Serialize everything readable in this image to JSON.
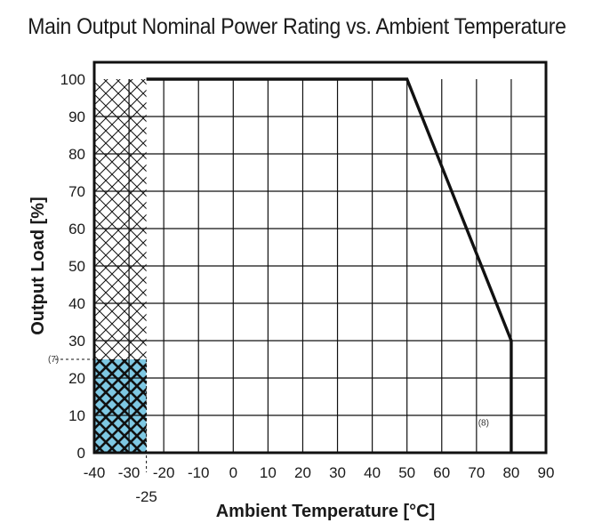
{
  "chart_data": {
    "type": "line",
    "title": "Main Output Nominal Power Rating vs. Ambient Temperature",
    "xlabel": "Ambient Temperature [°C]",
    "ylabel": "Output Load [%]",
    "xlim": [
      -40,
      90
    ],
    "ylim": [
      0,
      100
    ],
    "x_ticks": [
      -40,
      -30,
      -20,
      -10,
      0,
      10,
      20,
      30,
      40,
      50,
      60,
      70,
      80,
      90
    ],
    "x_tick_labels": [
      "-40",
      "-30",
      "-20",
      "-10",
      "0",
      "10",
      "20",
      "30",
      "40",
      "50",
      "60",
      "70",
      "80",
      "90"
    ],
    "y_ticks": [
      0,
      10,
      20,
      30,
      40,
      50,
      60,
      70,
      80,
      90,
      100
    ],
    "y_tick_labels": [
      "0",
      "10",
      "20",
      "30",
      "40",
      "50",
      "60",
      "70",
      "80",
      "90",
      "100"
    ],
    "grid": true,
    "extra_x_tick": {
      "value": -25,
      "label": "-25"
    },
    "series": [
      {
        "name": "Nominal power rating",
        "x": [
          -25,
          50,
          80,
          80
        ],
        "y": [
          100,
          100,
          30,
          0
        ]
      }
    ],
    "regions": [
      {
        "name": "hatched-low-temp-zone",
        "x_range": [
          -40,
          -25
        ],
        "y_range": [
          0,
          100
        ]
      },
      {
        "name": "blue-startup-zone",
        "x_range": [
          -40,
          -25
        ],
        "y_range": [
          0,
          25
        ],
        "color": "#7ec8e3"
      }
    ],
    "annotations": [
      {
        "label": "(7)",
        "x": -40,
        "y": 25
      },
      {
        "label": "(8)",
        "x": 70,
        "y": 8
      }
    ]
  },
  "colors": {
    "line": "#111111",
    "grid": "#111111",
    "blue_zone": "#7ec8e3"
  }
}
